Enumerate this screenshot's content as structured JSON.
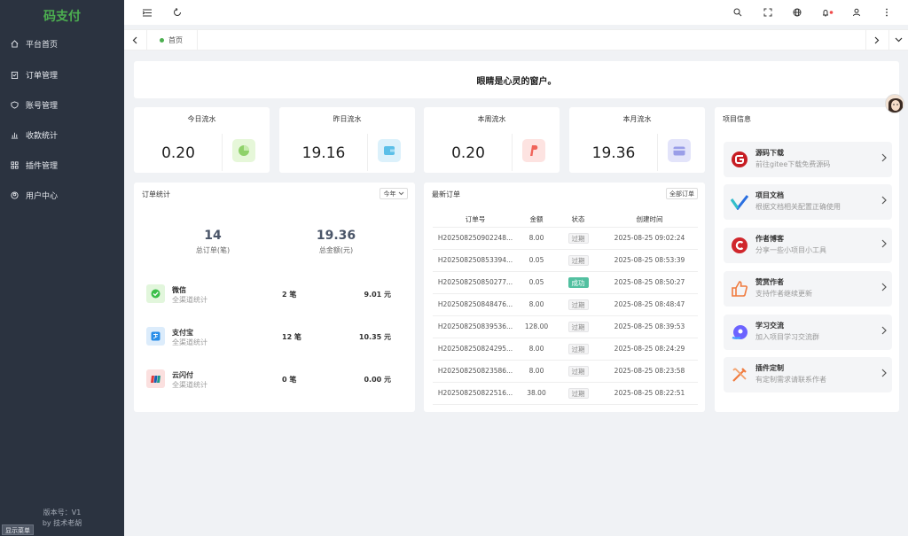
{
  "sidebar": {
    "logo": "码支付",
    "items": [
      {
        "label": "平台首页",
        "icon": "home-icon"
      },
      {
        "label": "订单管理",
        "icon": "clipboard-icon"
      },
      {
        "label": "账号管理",
        "icon": "shield-icon"
      },
      {
        "label": "收款统计",
        "icon": "chart-icon"
      },
      {
        "label": "插件管理",
        "icon": "grid-icon"
      },
      {
        "label": "用户中心",
        "icon": "user-circle-icon"
      }
    ],
    "version": "版本号：V1",
    "author": "by 技术老胡",
    "show_menu": "显示菜单"
  },
  "tabs": {
    "home": "首页"
  },
  "notice": "眼睛是心灵的窗户。",
  "stats": [
    {
      "title": "今日流水",
      "value": "0.20",
      "color": "#e6f7d9",
      "icon": "pie-icon"
    },
    {
      "title": "昨日流水",
      "value": "19.16",
      "color": "#dcf1fb",
      "icon": "wallet-icon"
    },
    {
      "title": "本周流水",
      "value": "0.20",
      "color": "#fde3e1",
      "icon": "paypal-icon"
    },
    {
      "title": "本月流水",
      "value": "19.36",
      "color": "#e3e4fa",
      "icon": "card-icon"
    }
  ],
  "order_stats": {
    "title": "订单统计",
    "range": "今年",
    "total_orders": "14",
    "total_orders_label": "总订单(笔)",
    "total_amount": "19.36",
    "total_amount_label": "总金额(元)",
    "channels": [
      {
        "name": "微信",
        "sub": "全渠道统计",
        "count": "2 笔",
        "amount": "9.01 元",
        "color": "#e2f6dc",
        "icon": "wechat-icon"
      },
      {
        "name": "支付宝",
        "sub": "全渠道统计",
        "count": "12 笔",
        "amount": "10.35 元",
        "color": "#dcecfb",
        "icon": "alipay-icon"
      },
      {
        "name": "云闪付",
        "sub": "全渠道统计",
        "count": "0 笔",
        "amount": "0.00 元",
        "color": "#fbe0df",
        "icon": "unionpay-icon"
      }
    ]
  },
  "latest_orders": {
    "title": "最新订单",
    "all": "全部订单",
    "headers": [
      "订单号",
      "金额",
      "状态",
      "创建时间"
    ],
    "rows": [
      [
        "H202508250902248...",
        "8.00",
        "过期",
        "2025-08-25 09:02:24"
      ],
      [
        "H202508250853394...",
        "0.05",
        "过期",
        "2025-08-25 08:53:39"
      ],
      [
        "H202508250850277...",
        "0.05",
        "成功",
        "2025-08-25 08:50:27"
      ],
      [
        "H202508250848476...",
        "8.00",
        "过期",
        "2025-08-25 08:48:47"
      ],
      [
        "H202508250839536...",
        "128.00",
        "过期",
        "2025-08-25 08:39:53"
      ],
      [
        "H202508250824295...",
        "8.00",
        "过期",
        "2025-08-25 08:24:29"
      ],
      [
        "H202508250823586...",
        "8.00",
        "过期",
        "2025-08-25 08:23:58"
      ],
      [
        "H202508250822516...",
        "38.00",
        "过期",
        "2025-08-25 08:22:51"
      ]
    ]
  },
  "project": {
    "title": "项目信息",
    "items": [
      {
        "name": "源码下载",
        "desc": "前往gitee下载免费源码",
        "icon": "gitee-icon"
      },
      {
        "name": "项目文档",
        "desc": "根据文档相关配置正确使用",
        "icon": "docs-icon"
      },
      {
        "name": "作者博客",
        "desc": "分享一些小项目小工具",
        "icon": "blog-icon"
      },
      {
        "name": "赞赏作者",
        "desc": "支持作者继续更新",
        "icon": "thumbs-up-icon"
      },
      {
        "name": "学习交流",
        "desc": "加入项目学习交流群",
        "icon": "chat-icon"
      },
      {
        "name": "插件定制",
        "desc": "有定制需求请联系作者",
        "icon": "tools-icon"
      }
    ]
  }
}
